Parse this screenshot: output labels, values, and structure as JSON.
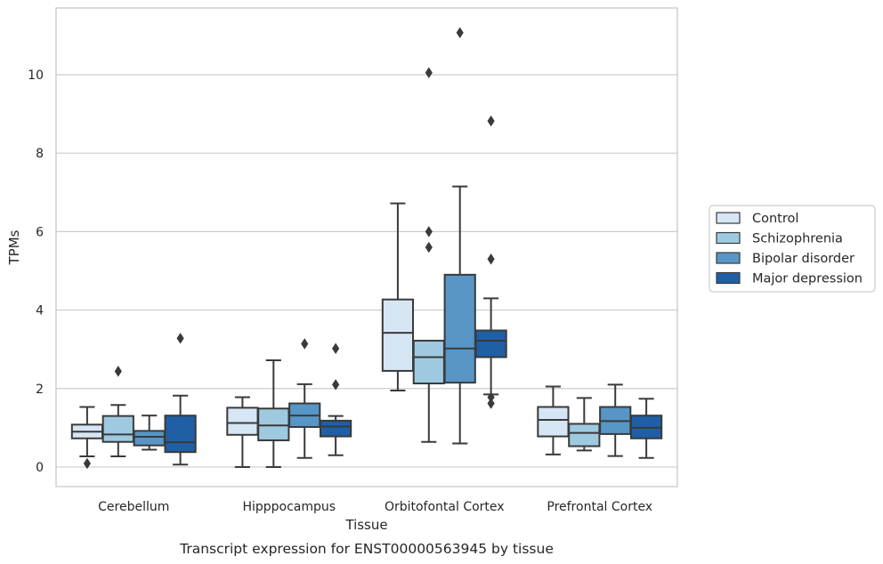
{
  "chart_data": {
    "type": "box",
    "caption": "Transcript expression for ENST00000563945 by tissue",
    "xlabel": "Tissue",
    "ylabel": "TPMs",
    "ylim": [
      -0.5,
      11.7
    ],
    "yticks": [
      0,
      2,
      4,
      6,
      8,
      10
    ],
    "grid": "horizontal",
    "legend_position": "right",
    "categories": [
      "Cerebellum",
      "Hipppocampus",
      "Orbitofontal Cortex",
      "Prefrontal Cortex"
    ],
    "series": [
      {
        "name": "Control",
        "color": "#d6e6f4",
        "boxes": [
          {
            "whisker_low": 0.27,
            "q1": 0.73,
            "median": 0.9,
            "q3": 1.08,
            "whisker_high": 1.53,
            "outliers": [
              0.09
            ]
          },
          {
            "whisker_low": 0.0,
            "q1": 0.82,
            "median": 1.12,
            "q3": 1.51,
            "whisker_high": 1.78,
            "outliers": []
          },
          {
            "whisker_low": 1.95,
            "q1": 2.45,
            "median": 3.42,
            "q3": 4.27,
            "whisker_high": 6.72,
            "outliers": []
          },
          {
            "whisker_low": 0.32,
            "q1": 0.78,
            "median": 1.2,
            "q3": 1.53,
            "whisker_high": 2.05,
            "outliers": []
          }
        ]
      },
      {
        "name": "Schizophrenia",
        "color": "#9ecae1",
        "boxes": [
          {
            "whisker_low": 0.27,
            "q1": 0.64,
            "median": 0.83,
            "q3": 1.3,
            "whisker_high": 1.58,
            "outliers": [
              2.44
            ]
          },
          {
            "whisker_low": 0.0,
            "q1": 0.68,
            "median": 1.06,
            "q3": 1.49,
            "whisker_high": 2.72,
            "outliers": []
          },
          {
            "whisker_low": 0.64,
            "q1": 2.13,
            "median": 2.8,
            "q3": 3.22,
            "whisker_high": 3.22,
            "outliers": [
              5.6,
              6.0,
              10.05
            ]
          },
          {
            "whisker_low": 0.42,
            "q1": 0.53,
            "median": 0.87,
            "q3": 1.1,
            "whisker_high": 1.76,
            "outliers": []
          }
        ]
      },
      {
        "name": "Bipolar disorder",
        "color": "#5796c6",
        "boxes": [
          {
            "whisker_low": 0.44,
            "q1": 0.55,
            "median": 0.77,
            "q3": 0.92,
            "whisker_high": 1.31,
            "outliers": []
          },
          {
            "whisker_low": 0.23,
            "q1": 1.02,
            "median": 1.31,
            "q3": 1.62,
            "whisker_high": 2.11,
            "outliers": [
              3.14
            ]
          },
          {
            "whisker_low": 0.6,
            "q1": 2.15,
            "median": 3.02,
            "q3": 4.9,
            "whisker_high": 7.15,
            "outliers": [
              11.07
            ]
          },
          {
            "whisker_low": 0.28,
            "q1": 0.84,
            "median": 1.17,
            "q3": 1.53,
            "whisker_high": 2.1,
            "outliers": []
          }
        ]
      },
      {
        "name": "Major depression",
        "color": "#1f5fa5",
        "boxes": [
          {
            "whisker_low": 0.06,
            "q1": 0.38,
            "median": 0.63,
            "q3": 1.31,
            "whisker_high": 1.82,
            "outliers": [
              3.28
            ]
          },
          {
            "whisker_low": 0.3,
            "q1": 0.78,
            "median": 1.03,
            "q3": 1.18,
            "whisker_high": 1.3,
            "outliers": [
              2.1,
              3.02
            ]
          },
          {
            "whisker_low": 1.85,
            "q1": 2.8,
            "median": 3.22,
            "q3": 3.48,
            "whisker_high": 4.3,
            "outliers": [
              1.62,
              1.78,
              5.3,
              8.82
            ]
          },
          {
            "whisker_low": 0.23,
            "q1": 0.73,
            "median": 1.0,
            "q3": 1.31,
            "whisker_high": 1.74,
            "outliers": []
          }
        ]
      }
    ]
  }
}
